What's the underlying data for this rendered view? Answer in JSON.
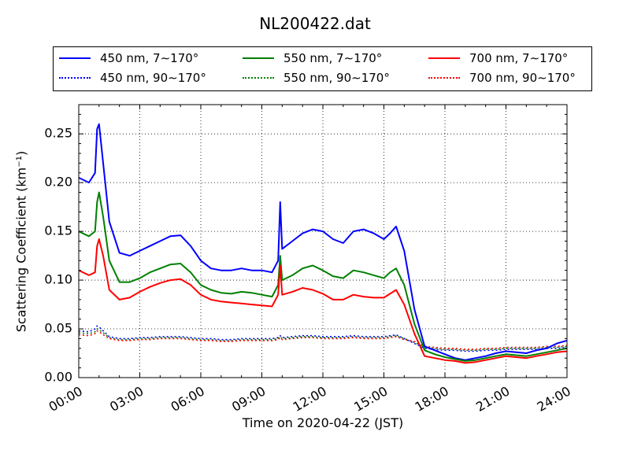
{
  "chart_data": {
    "type": "line",
    "title": "NL200422.dat",
    "xlabel": "Time on 2020-04-22 (JST)",
    "ylabel": "Scattering Coefficient (km⁻¹)",
    "xlim": [
      0,
      24
    ],
    "ylim": [
      0,
      0.28
    ],
    "grid": true,
    "legend_position": "top, above plot",
    "x_ticks": [
      "00:00",
      "03:00",
      "06:00",
      "09:00",
      "12:00",
      "15:00",
      "18:00",
      "21:00",
      "24:00"
    ],
    "y_ticks": [
      "0.00",
      "0.05",
      "0.10",
      "0.15",
      "0.20",
      "0.25"
    ],
    "x_hours": [
      0,
      0.5,
      0.8,
      0.9,
      1.0,
      1.2,
      1.5,
      2.0,
      2.5,
      3.0,
      3.5,
      4.0,
      4.5,
      5.0,
      5.5,
      6.0,
      6.5,
      7.0,
      7.5,
      8.0,
      8.5,
      9.0,
      9.5,
      9.8,
      9.9,
      10.0,
      10.5,
      11.0,
      11.5,
      12.0,
      12.5,
      13.0,
      13.5,
      14.0,
      14.5,
      15.0,
      15.3,
      15.6,
      16.0,
      16.5,
      17.0,
      17.5,
      18.0,
      18.5,
      19.0,
      19.5,
      20.0,
      20.5,
      21.0,
      21.5,
      22.0,
      22.5,
      23.0,
      23.5,
      24.0
    ],
    "series": [
      {
        "name": "450 nm, 7∼170°",
        "color": "#0000ff",
        "style": "solid",
        "values": [
          0.205,
          0.2,
          0.21,
          0.255,
          0.26,
          0.22,
          0.16,
          0.128,
          0.125,
          0.13,
          0.135,
          0.14,
          0.145,
          0.146,
          0.135,
          0.12,
          0.112,
          0.11,
          0.11,
          0.112,
          0.11,
          0.11,
          0.108,
          0.12,
          0.18,
          0.132,
          0.14,
          0.148,
          0.152,
          0.15,
          0.142,
          0.138,
          0.15,
          0.152,
          0.148,
          0.142,
          0.148,
          0.155,
          0.13,
          0.07,
          0.032,
          0.028,
          0.024,
          0.02,
          0.018,
          0.02,
          0.022,
          0.025,
          0.027,
          0.026,
          0.025,
          0.028,
          0.03,
          0.035,
          0.038
        ]
      },
      {
        "name": "550 nm, 7∼170°",
        "color": "#008000",
        "style": "solid",
        "values": [
          0.15,
          0.145,
          0.15,
          0.18,
          0.19,
          0.165,
          0.12,
          0.098,
          0.098,
          0.102,
          0.108,
          0.112,
          0.116,
          0.117,
          0.108,
          0.095,
          0.09,
          0.087,
          0.086,
          0.088,
          0.087,
          0.085,
          0.083,
          0.095,
          0.125,
          0.1,
          0.105,
          0.112,
          0.115,
          0.11,
          0.104,
          0.102,
          0.11,
          0.108,
          0.105,
          0.102,
          0.108,
          0.112,
          0.095,
          0.055,
          0.028,
          0.024,
          0.021,
          0.019,
          0.017,
          0.018,
          0.02,
          0.022,
          0.024,
          0.023,
          0.022,
          0.024,
          0.026,
          0.028,
          0.03
        ]
      },
      {
        "name": "700 nm, 7∼170°",
        "color": "#ff0000",
        "style": "solid",
        "values": [
          0.11,
          0.105,
          0.108,
          0.135,
          0.142,
          0.125,
          0.09,
          0.08,
          0.082,
          0.088,
          0.093,
          0.097,
          0.1,
          0.101,
          0.095,
          0.085,
          0.08,
          0.078,
          0.077,
          0.076,
          0.075,
          0.074,
          0.073,
          0.085,
          0.115,
          0.085,
          0.088,
          0.092,
          0.09,
          0.086,
          0.08,
          0.08,
          0.085,
          0.083,
          0.082,
          0.082,
          0.086,
          0.09,
          0.075,
          0.045,
          0.022,
          0.02,
          0.018,
          0.017,
          0.015,
          0.016,
          0.018,
          0.02,
          0.022,
          0.021,
          0.02,
          0.022,
          0.024,
          0.026,
          0.027
        ]
      },
      {
        "name": "450 nm, 90∼170°",
        "color": "#0000ff",
        "style": "dotted",
        "values": [
          0.048,
          0.047,
          0.05,
          0.053,
          0.052,
          0.048,
          0.042,
          0.04,
          0.04,
          0.041,
          0.041,
          0.042,
          0.042,
          0.042,
          0.041,
          0.04,
          0.04,
          0.039,
          0.039,
          0.04,
          0.04,
          0.04,
          0.04,
          0.041,
          0.043,
          0.041,
          0.042,
          0.043,
          0.043,
          0.042,
          0.042,
          0.042,
          0.043,
          0.042,
          0.042,
          0.042,
          0.043,
          0.044,
          0.04,
          0.035,
          0.03,
          0.029,
          0.028,
          0.028,
          0.027,
          0.027,
          0.028,
          0.028,
          0.029,
          0.029,
          0.029,
          0.029,
          0.03,
          0.03,
          0.031
        ]
      },
      {
        "name": "550 nm, 90∼170°",
        "color": "#008000",
        "style": "dotted",
        "values": [
          0.046,
          0.045,
          0.047,
          0.05,
          0.049,
          0.046,
          0.041,
          0.039,
          0.039,
          0.04,
          0.04,
          0.041,
          0.041,
          0.041,
          0.04,
          0.039,
          0.039,
          0.038,
          0.038,
          0.039,
          0.039,
          0.039,
          0.039,
          0.04,
          0.042,
          0.04,
          0.041,
          0.042,
          0.042,
          0.041,
          0.041,
          0.041,
          0.042,
          0.041,
          0.041,
          0.041,
          0.042,
          0.043,
          0.04,
          0.036,
          0.031,
          0.03,
          0.029,
          0.029,
          0.028,
          0.028,
          0.029,
          0.029,
          0.03,
          0.03,
          0.03,
          0.03,
          0.031,
          0.031,
          0.032
        ]
      },
      {
        "name": "700 nm, 90∼170°",
        "color": "#ff0000",
        "style": "dotted",
        "values": [
          0.044,
          0.043,
          0.045,
          0.048,
          0.047,
          0.044,
          0.04,
          0.038,
          0.038,
          0.039,
          0.039,
          0.04,
          0.04,
          0.04,
          0.039,
          0.038,
          0.038,
          0.037,
          0.037,
          0.038,
          0.038,
          0.038,
          0.038,
          0.039,
          0.041,
          0.039,
          0.04,
          0.041,
          0.041,
          0.04,
          0.04,
          0.04,
          0.041,
          0.04,
          0.04,
          0.04,
          0.041,
          0.042,
          0.039,
          0.037,
          0.032,
          0.031,
          0.03,
          0.03,
          0.029,
          0.029,
          0.03,
          0.03,
          0.031,
          0.031,
          0.031,
          0.031,
          0.032,
          0.032,
          0.033
        ]
      }
    ]
  }
}
